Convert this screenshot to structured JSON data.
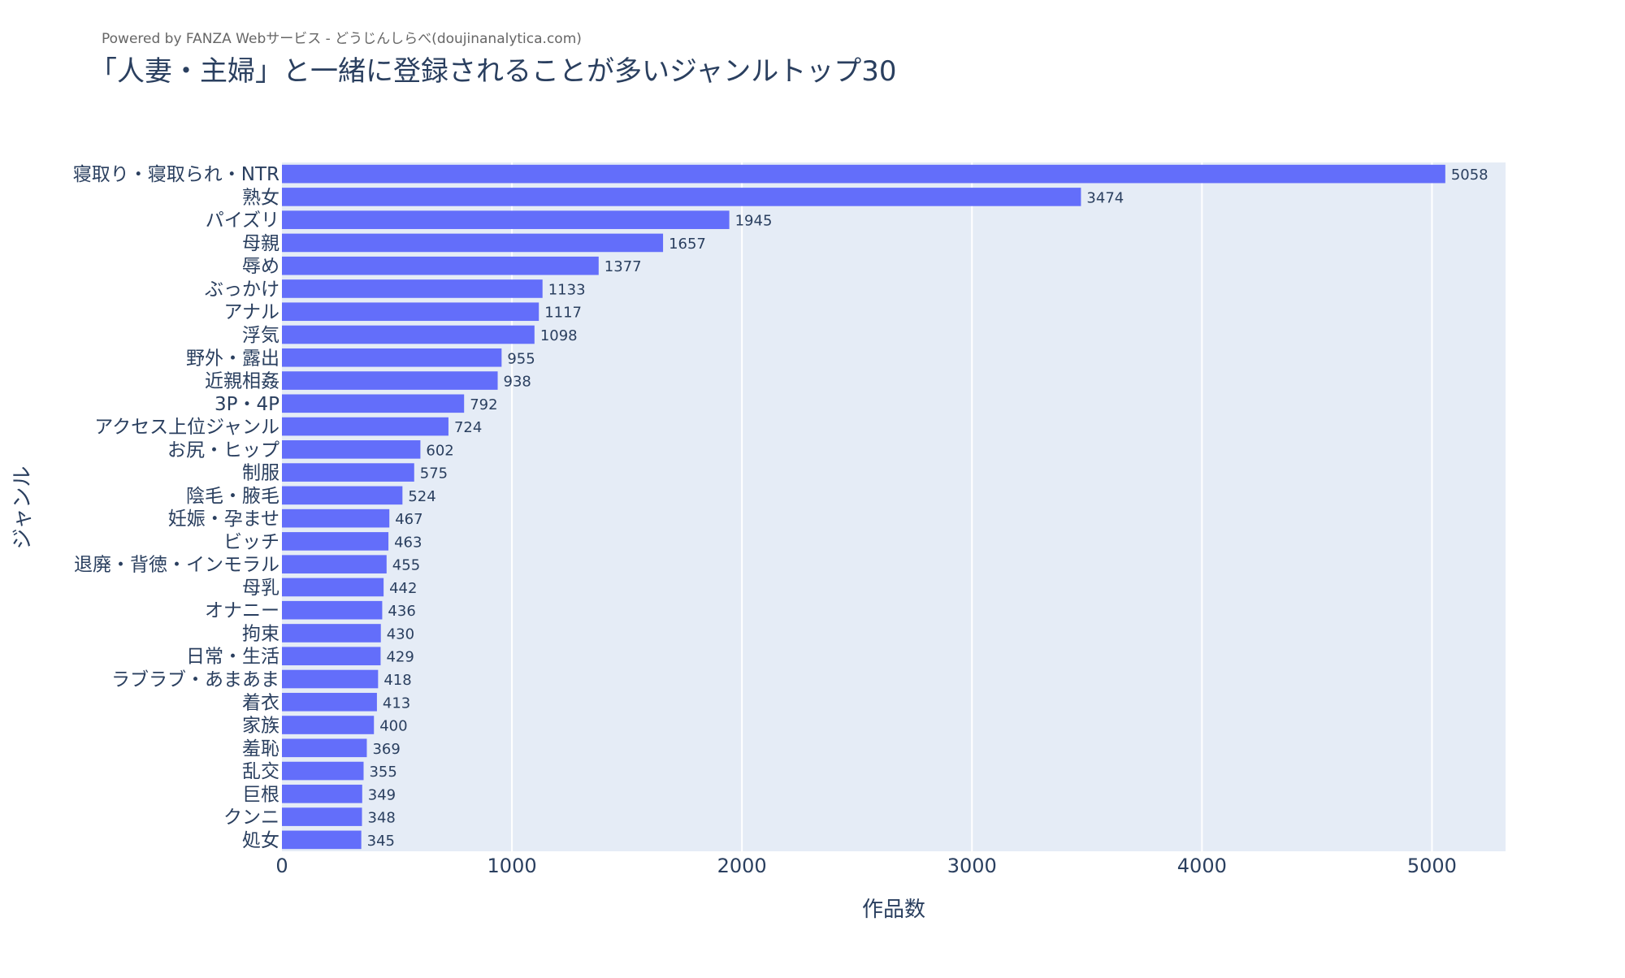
{
  "credit": "Powered by FANZA Webサービス - どうじんしらべ(doujinanalytica.com)",
  "colors": {
    "bar": "#636efa",
    "plot_bg": "#e5ecf6",
    "grid": "#ffffff",
    "text": "#2a3f5f"
  },
  "chart_data": {
    "type": "bar",
    "orientation": "horizontal",
    "title": "「人妻・主婦」と一緒に登録されることが多いジャンルトップ30",
    "xlabel": "作品数",
    "ylabel": "ジャンル",
    "xlim": [
      0,
      5320
    ],
    "xticks": [
      0,
      1000,
      2000,
      3000,
      4000,
      5000
    ],
    "grid": true,
    "categories": [
      "寝取り・寝取られ・NTR",
      "熟女",
      "パイズリ",
      "母親",
      "辱め",
      "ぶっかけ",
      "アナル",
      "浮気",
      "野外・露出",
      "近親相姦",
      "3P・4P",
      "アクセス上位ジャンル",
      "お尻・ヒップ",
      "制服",
      "陰毛・腋毛",
      "妊娠・孕ませ",
      "ビッチ",
      "退廃・背徳・インモラル",
      "母乳",
      "オナニー",
      "拘束",
      "日常・生活",
      "ラブラブ・あまあま",
      "着衣",
      "家族",
      "羞恥",
      "乱交",
      "巨根",
      "クンニ",
      "処女"
    ],
    "values": [
      5058,
      3474,
      1945,
      1657,
      1377,
      1133,
      1117,
      1098,
      955,
      938,
      792,
      724,
      602,
      575,
      524,
      467,
      463,
      455,
      442,
      436,
      430,
      429,
      418,
      413,
      400,
      369,
      355,
      349,
      348,
      345
    ]
  }
}
